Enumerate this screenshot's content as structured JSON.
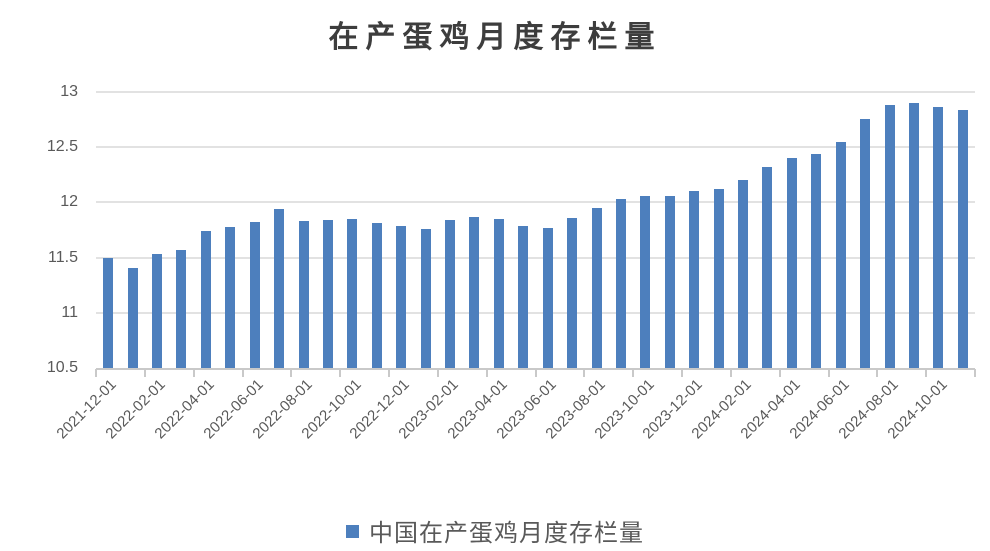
{
  "title": "在产蛋鸡月度存栏量",
  "legend": {
    "label": "中国在产蛋鸡月度存栏量",
    "swatch_color": "#4d7fbd"
  },
  "colors": {
    "bar": "#4d7fbd",
    "gridline": "#e2e2e2",
    "axis_line": "#c9c9c9",
    "axis_text": "#595959",
    "title_text": "#3d3d3d",
    "background": "#ffffff"
  },
  "chart_data": {
    "type": "bar",
    "title": "在产蛋鸡月度存栏量",
    "legend_entries": [
      "中国在产蛋鸡月度存栏量"
    ],
    "legend_position": "bottom",
    "grid": "horizontal",
    "ylim": [
      10.5,
      13
    ],
    "yticks": [
      10.5,
      11,
      11.5,
      12,
      12.5,
      13
    ],
    "xlabel": "",
    "ylabel": "",
    "x_label_every": 2,
    "x": [
      "2021-12-01",
      "2022-01-01",
      "2022-02-01",
      "2022-03-01",
      "2022-04-01",
      "2022-05-01",
      "2022-06-01",
      "2022-07-01",
      "2022-08-01",
      "2022-09-01",
      "2022-10-01",
      "2022-11-01",
      "2022-12-01",
      "2023-01-01",
      "2023-02-01",
      "2023-03-01",
      "2023-04-01",
      "2023-05-01",
      "2023-06-01",
      "2023-07-01",
      "2023-08-01",
      "2023-09-01",
      "2023-10-01",
      "2023-11-01",
      "2023-12-01",
      "2024-01-01",
      "2024-02-01",
      "2024-03-01",
      "2024-04-01",
      "2024-05-01",
      "2024-06-01",
      "2024-07-01",
      "2024-08-01",
      "2024-09-01",
      "2024-10-01",
      "2024-11-01"
    ],
    "values": [
      11.5,
      11.41,
      11.53,
      11.57,
      11.74,
      11.78,
      11.82,
      11.94,
      11.83,
      11.84,
      11.85,
      11.81,
      11.79,
      11.76,
      11.84,
      11.87,
      11.85,
      11.79,
      11.77,
      11.86,
      11.95,
      12.03,
      12.06,
      12.06,
      12.1,
      12.12,
      12.2,
      12.32,
      12.4,
      12.44,
      12.55,
      12.76,
      12.88,
      12.9,
      12.86,
      12.84
    ],
    "visible_x_tick_labels": [
      "2021-12-01",
      "2022-02-01",
      "2022-04-01",
      "2022-06-01",
      "2022-08-01",
      "2022-10-01",
      "2022-12-01",
      "2023-02-01",
      "2023-04-01",
      "2023-06-01",
      "2023-08-01",
      "2023-10-01",
      "2023-12-01",
      "2024-02-01",
      "2024-04-01",
      "2024-06-01",
      "2024-08-01",
      "2024-10-01"
    ],
    "visible_y_tick_labels": [
      "13",
      "12.5",
      "12",
      "11.5",
      "11",
      "10.5"
    ]
  }
}
